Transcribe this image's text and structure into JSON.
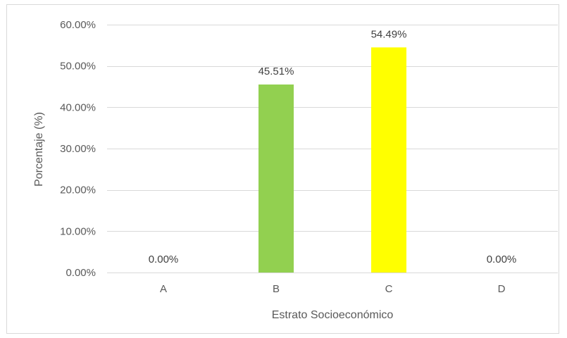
{
  "chart_data": {
    "type": "bar",
    "categories": [
      "A",
      "B",
      "C",
      "D"
    ],
    "values": [
      0.0,
      45.51,
      54.49,
      0.0
    ],
    "data_labels": [
      "0.00%",
      "45.51%",
      "54.49%",
      "0.00%"
    ],
    "bar_colors": [
      "#92d050",
      "#92d050",
      "#ffff00",
      "#92d050"
    ],
    "title": "",
    "xlabel": "Estrato Socioeconómico",
    "ylabel": "Porcentaje (%)",
    "ylim": [
      0,
      60
    ],
    "yticks": [
      0,
      10,
      20,
      30,
      40,
      50,
      60
    ],
    "ytick_labels": [
      "0.00%",
      "10.00%",
      "20.00%",
      "30.00%",
      "40.00%",
      "50.00%",
      "60.00%"
    ],
    "grid": true,
    "gridline_color": "#d9d9d9",
    "legend": "none"
  }
}
